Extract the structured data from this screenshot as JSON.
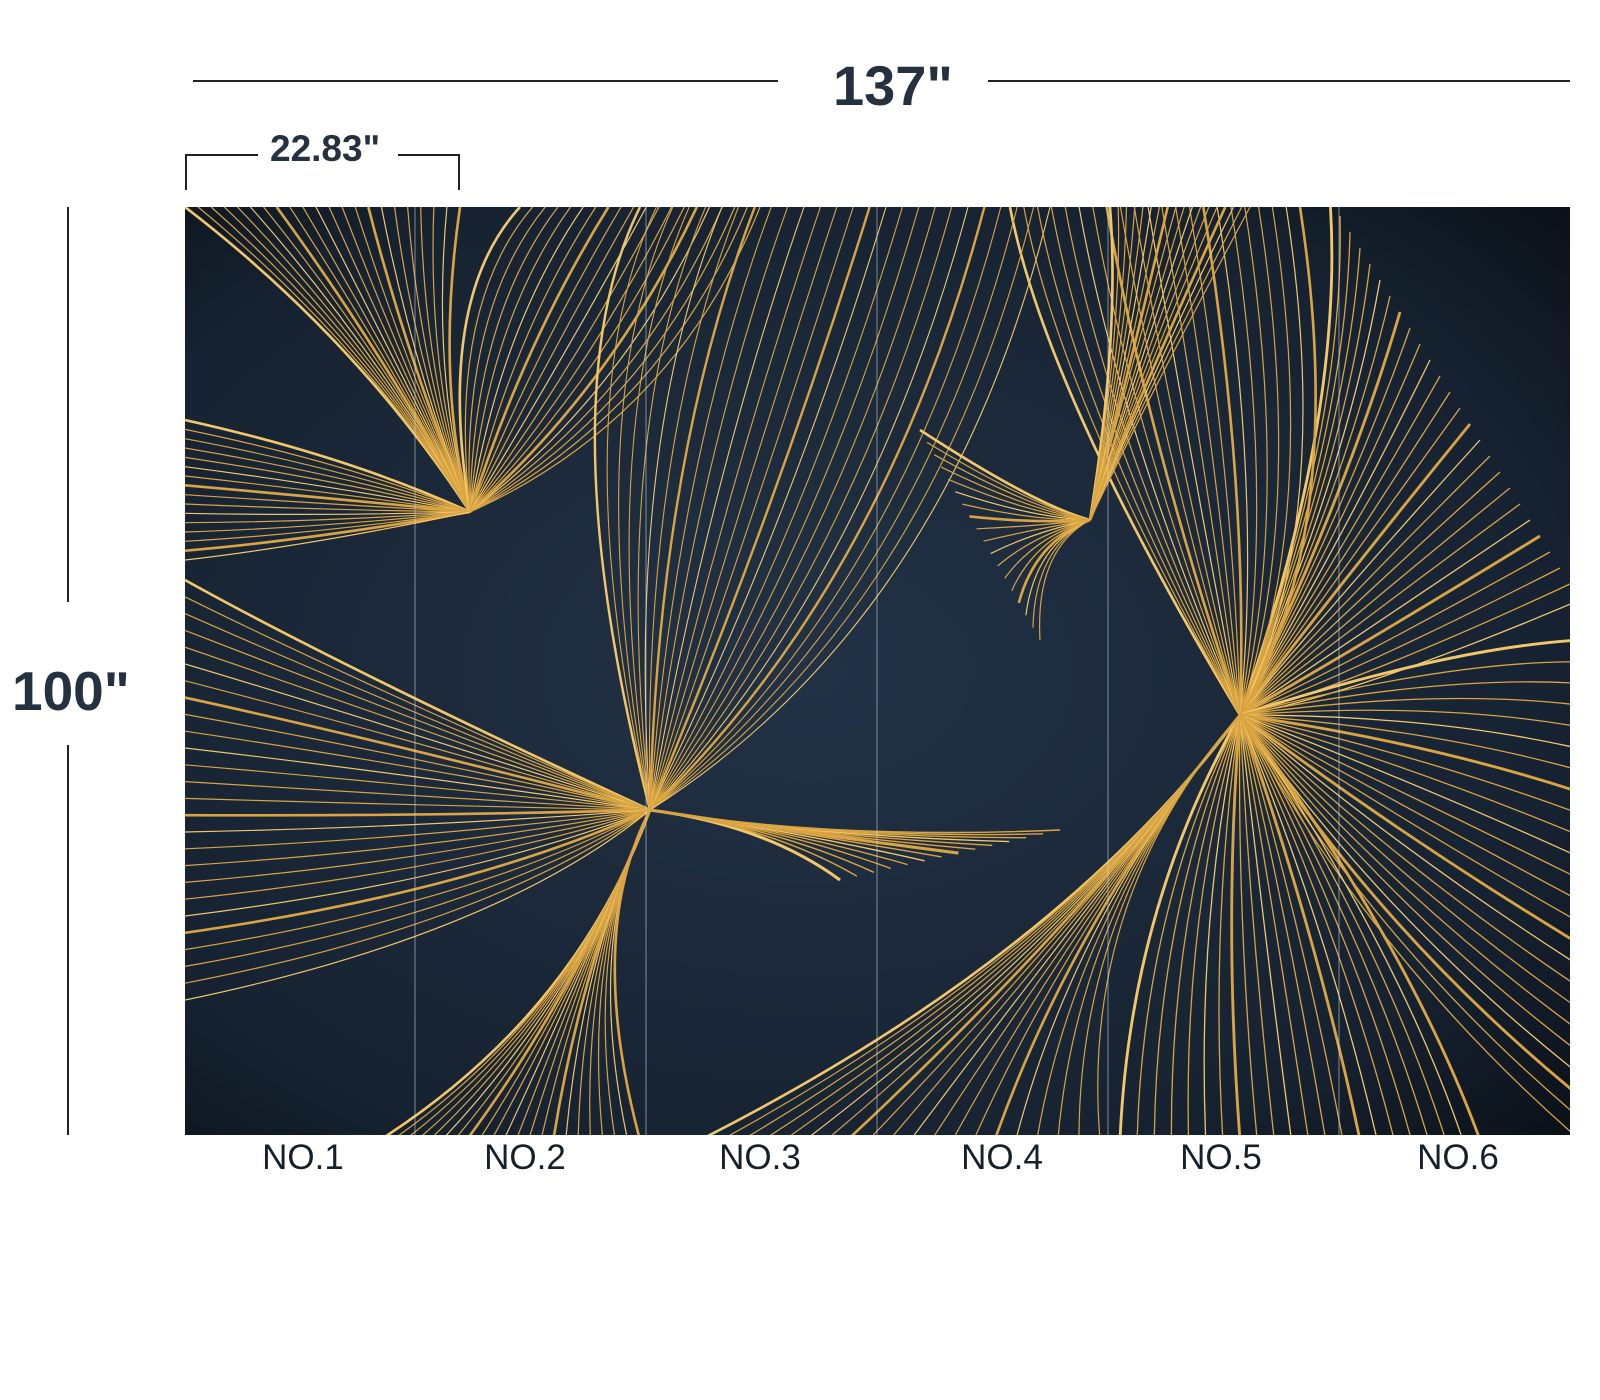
{
  "dimensions": {
    "total_width": "137\"",
    "panel_width": "22.83\"",
    "total_height": "100\""
  },
  "panels": [
    {
      "label": "NO.1"
    },
    {
      "label": "NO.2"
    },
    {
      "label": "NO.3"
    },
    {
      "label": "NO.4"
    },
    {
      "label": "NO.5"
    },
    {
      "label": "NO.6"
    }
  ],
  "colors": {
    "background": "#1b2838",
    "background_dark": "#0a0f16",
    "gold": "#d9a441",
    "gold_light": "#f2c76a",
    "seam": "#d8dde2"
  }
}
